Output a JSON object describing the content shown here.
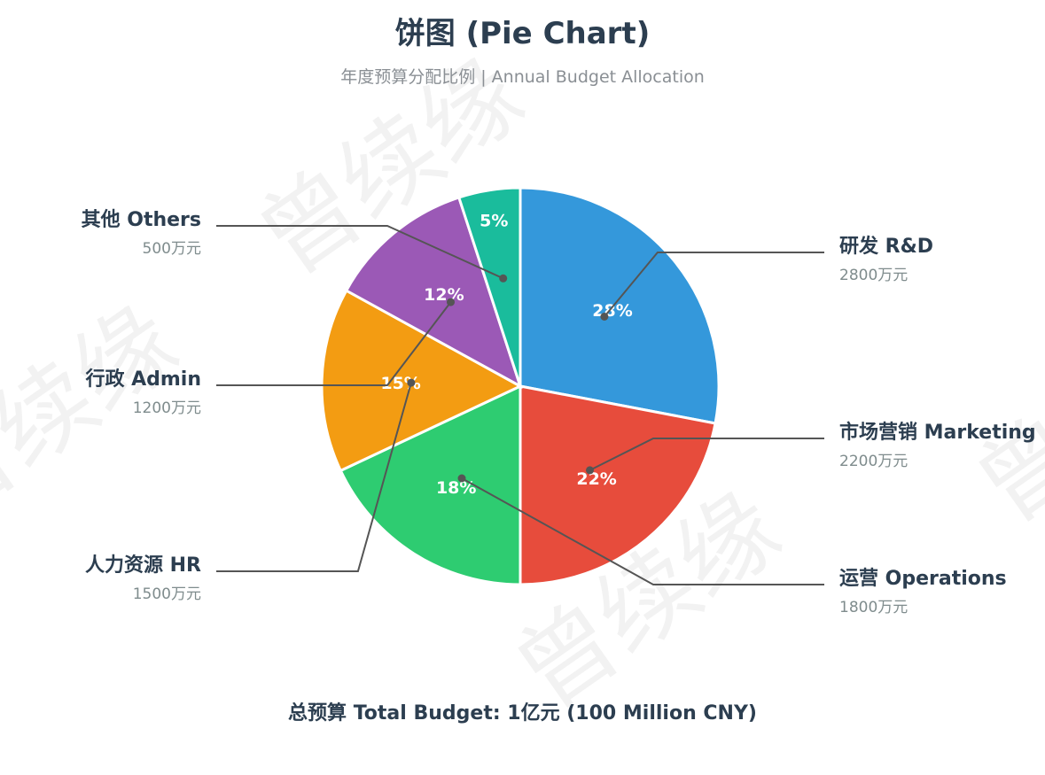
{
  "title": "饼图 (Pie Chart)",
  "subtitle": "年度预算分配比例 | Annual Budget Allocation",
  "total": "总预算 Total Budget: 1亿元 (100 Million CNY)",
  "watermark": "曾续缘",
  "chart_data": {
    "type": "pie",
    "title": "饼图 (Pie Chart)",
    "subtitle": "年度预算分配比例 | Annual Budget Allocation",
    "unit": "万元",
    "slices": [
      {
        "name": "研发 R&D",
        "value": 2800,
        "percent": "28%",
        "value_label": "2800万元",
        "color": "#3498db",
        "side": "right"
      },
      {
        "name": "市场营销 Marketing",
        "value": 2200,
        "percent": "22%",
        "value_label": "2200万元",
        "color": "#e74c3c",
        "side": "right"
      },
      {
        "name": "运营 Operations",
        "value": 1800,
        "percent": "18%",
        "value_label": "1800万元",
        "color": "#2ecc71",
        "side": "right"
      },
      {
        "name": "人力资源 HR",
        "value": 1500,
        "percent": "15%",
        "value_label": "1500万元",
        "color": "#f39c12",
        "side": "left"
      },
      {
        "name": "行政 Admin",
        "value": 1200,
        "percent": "12%",
        "value_label": "1200万元",
        "color": "#9b59b6",
        "side": "left"
      },
      {
        "name": "其他 Others",
        "value": 500,
        "percent": "5%",
        "value_label": "500万元",
        "color": "#1abc9c",
        "side": "left"
      }
    ]
  }
}
